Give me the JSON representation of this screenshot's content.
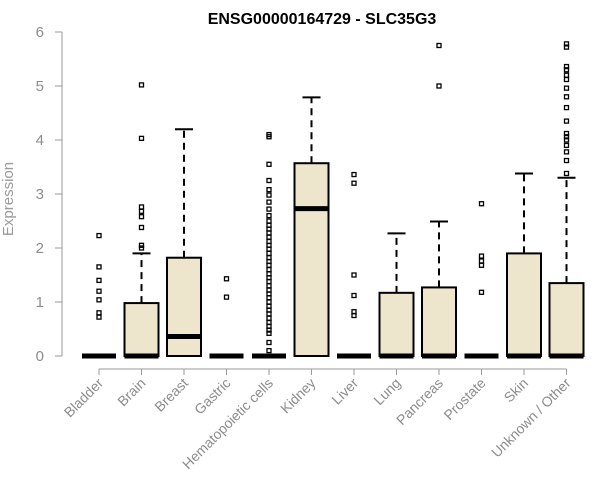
{
  "chart_data": {
    "type": "box",
    "title": "ENSG00000164729 - SLC35G3",
    "xlabel": "",
    "ylabel": "Expression",
    "ylim": [
      0,
      6
    ],
    "yticks": [
      0,
      1,
      2,
      3,
      4,
      5,
      6
    ],
    "grid": false,
    "colors": {
      "box_fill": "#ede6cc",
      "box_stroke": "#000000",
      "axis": "#9a9a9a"
    },
    "categories": [
      "Bladder",
      "Brain",
      "Breast",
      "Gastric",
      "Hematopoietic cells",
      "Kidney",
      "Liver",
      "Lung",
      "Pancreas",
      "Prostate",
      "Skin",
      "Unknown / Other"
    ],
    "boxes": [
      {
        "category": "Bladder",
        "min": 0,
        "q1": 0,
        "median": 0,
        "q3": 0,
        "max": 0,
        "outliers": [
          0.72,
          0.8,
          1.04,
          1.2,
          1.4,
          1.65,
          2.23
        ]
      },
      {
        "category": "Brain",
        "min": 0,
        "q1": 0,
        "median": 0,
        "q3": 0.98,
        "max": 1.9,
        "outliers": [
          2.0,
          2.05,
          2.38,
          2.58,
          2.68,
          2.76,
          4.03,
          5.02
        ]
      },
      {
        "category": "Breast",
        "min": 0,
        "q1": 0,
        "median": 0.36,
        "q3": 1.82,
        "max": 4.2,
        "outliers": []
      },
      {
        "category": "Gastric",
        "min": 0,
        "q1": 0,
        "median": 0,
        "q3": 0,
        "max": 0,
        "outliers": [
          1.09,
          1.43
        ]
      },
      {
        "category": "Hematopoietic cells",
        "min": 0,
        "q1": 0,
        "median": 0,
        "q3": 0,
        "max": 0,
        "outliers": [
          0.1,
          0.25,
          0.42,
          0.48,
          0.55,
          0.62,
          0.7,
          0.78,
          0.85,
          0.92,
          1.0,
          1.08,
          1.15,
          1.22,
          1.3,
          1.38,
          1.45,
          1.52,
          1.6,
          1.68,
          1.75,
          1.82,
          1.9,
          1.98,
          2.05,
          2.12,
          2.2,
          2.28,
          2.35,
          2.42,
          2.5,
          2.6,
          2.72,
          2.85,
          2.98,
          3.08,
          3.25,
          3.55,
          4.06,
          4.1
        ]
      },
      {
        "category": "Kidney",
        "min": 0,
        "q1": 0,
        "median": 2.73,
        "q3": 3.57,
        "max": 4.79,
        "outliers": []
      },
      {
        "category": "Liver",
        "min": 0,
        "q1": 0,
        "median": 0,
        "q3": 0,
        "max": 0,
        "outliers": [
          0.75,
          0.82,
          1.12,
          1.5,
          3.2,
          3.36
        ]
      },
      {
        "category": "Lung",
        "min": 0,
        "q1": 0,
        "median": 0,
        "q3": 1.17,
        "max": 2.27,
        "outliers": []
      },
      {
        "category": "Pancreas",
        "min": 0,
        "q1": 0,
        "median": 0,
        "q3": 1.27,
        "max": 2.49,
        "outliers": [
          5.0,
          5.75
        ]
      },
      {
        "category": "Prostate",
        "min": 0,
        "q1": 0,
        "median": 0,
        "q3": 0,
        "max": 0,
        "outliers": [
          1.18,
          1.68,
          1.76,
          1.85,
          2.82
        ]
      },
      {
        "category": "Skin",
        "min": 0,
        "q1": 0,
        "median": 0,
        "q3": 1.9,
        "max": 3.38,
        "outliers": []
      },
      {
        "category": "Unknown / Other",
        "min": 0,
        "q1": 0,
        "median": 0,
        "q3": 1.35,
        "max": 3.3,
        "outliers": [
          3.38,
          3.62,
          3.78,
          3.9,
          4.0,
          4.06,
          4.12,
          4.35,
          4.6,
          4.8,
          4.96,
          5.12,
          5.2,
          5.3,
          5.36,
          5.72,
          5.78
        ]
      }
    ]
  }
}
